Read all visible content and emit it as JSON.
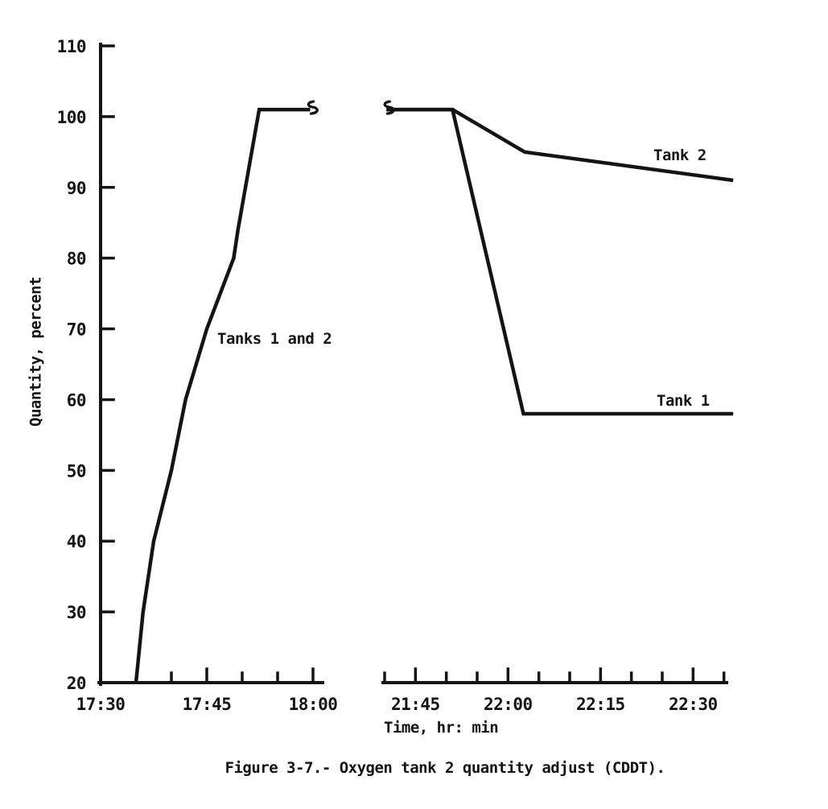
{
  "figure": {
    "caption": "Figure 3-7.- Oxygen tank 2 quantity adjust (CDDT)."
  },
  "chart_data": {
    "type": "line",
    "title": "",
    "xlabel": "Time, hr: min",
    "ylabel": "Quantity, percent",
    "ylim": [
      20,
      110
    ],
    "y_ticks": [
      110,
      100,
      90,
      80,
      70,
      60,
      50,
      40,
      30,
      20
    ],
    "grid": false,
    "line_color": "#141414",
    "x_axis": {
      "break_between_segments": true,
      "segments": [
        {
          "id": "left",
          "first_tick": "17:40",
          "last_tick": "18:00",
          "tick_step_min": 5,
          "labeled_ticks": [
            "17:30",
            "17:45",
            "18:00"
          ]
        },
        {
          "id": "right",
          "first_tick": "21:40",
          "last_tick": "22:35",
          "tick_step_min": 5,
          "labeled_ticks": [
            "21:45",
            "22:00",
            "22:15",
            "22:30"
          ]
        }
      ]
    },
    "series": [
      {
        "name": "Tanks 1 and 2",
        "segment": "left",
        "points": [
          [
            "17:35",
            20
          ],
          [
            "17:36",
            30
          ],
          [
            "17:37.5",
            40
          ],
          [
            "17:40",
            50
          ],
          [
            "17:42",
            60
          ],
          [
            "17:45",
            70
          ],
          [
            "17:48.8",
            80
          ],
          [
            "17:49.4",
            84
          ],
          [
            "17:52.4",
            101
          ],
          [
            "17:59.6",
            101
          ]
        ]
      },
      {
        "name": "Tank 1",
        "segment": "right",
        "points": [
          [
            "21:40.3",
            101
          ],
          [
            "21:51",
            101
          ],
          [
            "22:02.5",
            58
          ],
          [
            "22:36.5",
            58
          ]
        ]
      },
      {
        "name": "Tank 2",
        "segment": "right",
        "points": [
          [
            "21:40.3",
            101
          ],
          [
            "21:51",
            101
          ],
          [
            "22:02.7",
            95
          ],
          [
            "22:36.5",
            91
          ]
        ]
      }
    ],
    "break_symbols": [
      {
        "segment": "left",
        "time": "17:59.6",
        "value": 101
      },
      {
        "segment": "right",
        "time": "21:40.3",
        "value": 101
      }
    ]
  }
}
